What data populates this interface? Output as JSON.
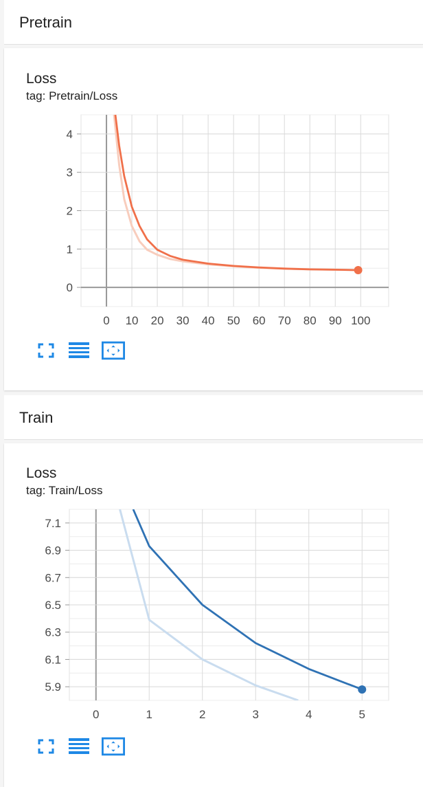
{
  "sections": [
    {
      "title": "Pretrain",
      "card": {
        "title": "Loss",
        "tag": "tag: Pretrain/Loss",
        "color": "#f0704a",
        "faint_color": "#f8cdbd"
      }
    },
    {
      "title": "Train",
      "card": {
        "title": "Loss",
        "tag": "tag: Train/Loss",
        "color": "#2f72b4",
        "faint_color": "#c9dcef"
      }
    }
  ],
  "toolbar": {
    "icons": [
      "fullscreen-icon",
      "data-table-icon",
      "fit-domain-icon"
    ]
  },
  "chart_data": [
    {
      "type": "line",
      "title": "Loss",
      "xlabel": "",
      "ylabel": "",
      "xlim": [
        -10,
        111
      ],
      "ylim": [
        -0.5,
        4.5
      ],
      "x_ticks": [
        0,
        10,
        20,
        30,
        40,
        50,
        60,
        70,
        80,
        90,
        100
      ],
      "y_ticks": [
        0,
        1,
        2,
        3,
        4
      ],
      "grid": true,
      "series": [
        {
          "role": "smoothed",
          "x": [
            3.5,
            5,
            7,
            10,
            13,
            16,
            20,
            25,
            30,
            40,
            50,
            60,
            70,
            80,
            90,
            99
          ],
          "values": [
            4.5,
            3.7,
            2.9,
            2.1,
            1.6,
            1.25,
            0.98,
            0.82,
            0.72,
            0.62,
            0.56,
            0.52,
            0.49,
            0.47,
            0.46,
            0.45
          ]
        },
        {
          "role": "raw",
          "x": [
            3,
            5,
            7,
            10,
            13,
            16,
            20,
            25,
            30,
            40,
            50,
            60,
            70,
            80,
            90,
            99
          ],
          "values": [
            4.5,
            3.2,
            2.3,
            1.6,
            1.2,
            0.98,
            0.85,
            0.74,
            0.68,
            0.6,
            0.55,
            0.51,
            0.49,
            0.47,
            0.46,
            0.45
          ]
        }
      ]
    },
    {
      "type": "line",
      "title": "Loss",
      "xlabel": "",
      "ylabel": "",
      "xlim": [
        -0.5,
        5.5
      ],
      "ylim": [
        5.8,
        7.2
      ],
      "x_ticks": [
        0,
        1,
        2,
        3,
        4,
        5
      ],
      "y_ticks": [
        5.9,
        6.1,
        6.3,
        6.5,
        6.7,
        6.9,
        7.1
      ],
      "grid": true,
      "series": [
        {
          "role": "smoothed",
          "x": [
            0.7,
            1,
            2,
            3,
            4,
            5
          ],
          "values": [
            7.2,
            6.93,
            6.5,
            6.22,
            6.03,
            5.88
          ]
        },
        {
          "role": "raw",
          "x": [
            0.45,
            1,
            2,
            3,
            3.8
          ],
          "values": [
            7.2,
            6.39,
            6.1,
            5.91,
            5.8
          ]
        }
      ]
    }
  ]
}
